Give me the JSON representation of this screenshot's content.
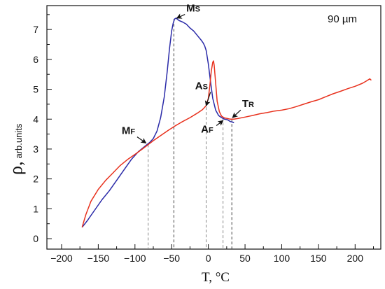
{
  "chart_data": {
    "type": "line",
    "ylabel": "ρ",
    "ylabel_sub": "arb.units",
    "xlabel": "T, °C",
    "annotation": "90 µm",
    "xlim": [
      -220,
      235
    ],
    "ylim": [
      -0.35,
      7.8
    ],
    "x_ticks": [
      -200,
      -150,
      -100,
      -50,
      0,
      50,
      100,
      150,
      200
    ],
    "x_tick_labels": [
      "−200",
      "−150",
      "−100",
      "−50",
      "0",
      "50",
      "100",
      "150",
      "200"
    ],
    "y_ticks": [
      0,
      1,
      2,
      3,
      4,
      5,
      6,
      7
    ],
    "y_tick_labels": [
      "0",
      "1",
      "2",
      "3",
      "4",
      "5",
      "6",
      "7"
    ],
    "colors": {
      "cooling": "#2a2aa8",
      "heating": "#e8321e",
      "guide": "#888888",
      "guide_dark": "#444444"
    },
    "series": [
      {
        "color_key": "cooling",
        "x": [
          -172,
          -165,
          -155,
          -145,
          -135,
          -125,
          -115,
          -105,
          -95,
          -85,
          -80,
          -75,
          -70,
          -65,
          -60,
          -56,
          -53,
          -50,
          -48,
          -46,
          -44,
          -40,
          -35,
          -30,
          -25,
          -20,
          -15,
          -10,
          -7,
          -5,
          -3,
          0,
          3,
          6,
          10,
          14,
          18,
          22,
          26,
          30,
          33,
          35
        ],
        "y": [
          0.38,
          0.6,
          0.95,
          1.3,
          1.6,
          1.95,
          2.3,
          2.65,
          2.92,
          3.12,
          3.22,
          3.35,
          3.6,
          4.05,
          4.75,
          5.6,
          6.35,
          6.95,
          7.2,
          7.35,
          7.38,
          7.3,
          7.25,
          7.18,
          7.05,
          6.95,
          6.8,
          6.65,
          6.55,
          6.45,
          6.3,
          5.85,
          5.25,
          4.7,
          4.3,
          4.12,
          4.05,
          4.0,
          3.98,
          3.92,
          3.9,
          3.88
        ]
      },
      {
        "color_key": "heating",
        "x": [
          -172,
          -167,
          -160,
          -150,
          -140,
          -130,
          -120,
          -110,
          -100,
          -90,
          -82,
          -75,
          -65,
          -55,
          -45,
          -35,
          -25,
          -15,
          -8,
          -3,
          0,
          2,
          4,
          6,
          7,
          8,
          10,
          12,
          15,
          18,
          22,
          26,
          30,
          35,
          40,
          50,
          60,
          70,
          80,
          90,
          100,
          110,
          120,
          130,
          140,
          150,
          160,
          170,
          180,
          190,
          200,
          210,
          215,
          220,
          222
        ],
        "y": [
          0.38,
          0.8,
          1.25,
          1.65,
          1.95,
          2.2,
          2.45,
          2.65,
          2.82,
          3.0,
          3.15,
          3.28,
          3.45,
          3.62,
          3.78,
          3.92,
          4.05,
          4.2,
          4.32,
          4.45,
          4.7,
          5.1,
          5.6,
          5.9,
          5.95,
          5.8,
          5.2,
          4.6,
          4.25,
          4.1,
          4.04,
          4.02,
          4.0,
          4.0,
          4.02,
          4.07,
          4.12,
          4.18,
          4.22,
          4.27,
          4.3,
          4.35,
          4.42,
          4.5,
          4.58,
          4.65,
          4.75,
          4.85,
          4.93,
          5.02,
          5.1,
          5.2,
          5.27,
          5.35,
          5.3
        ]
      }
    ],
    "guides": [
      {
        "x": -82,
        "y": 3.15,
        "style": "guide"
      },
      {
        "x": -47,
        "y": 7.35,
        "style": "guide_dark"
      },
      {
        "x": -3,
        "y": 4.4,
        "style": "guide"
      },
      {
        "x": 20,
        "y": 4.05,
        "style": "guide"
      },
      {
        "x": 32,
        "y": 4.0,
        "style": "guide_dark"
      }
    ],
    "labels": [
      {
        "main": "M",
        "sub": "S",
        "tx": -30,
        "ty": 7.6,
        "ax": -43,
        "ay": 7.38
      },
      {
        "main": "A",
        "sub": "S",
        "tx": -18,
        "ty": 5.0,
        "ax": -3,
        "ay": 4.45
      },
      {
        "main": "M",
        "sub": "F",
        "tx": -118,
        "ty": 3.5,
        "ax": -85,
        "ay": 3.2
      },
      {
        "main": "T",
        "sub": "R",
        "tx": 46,
        "ty": 4.4,
        "ax": 33,
        "ay": 4.05
      },
      {
        "main": "A",
        "sub": "F",
        "tx": -10,
        "ty": 3.55,
        "ax": 20,
        "ay": 3.95
      }
    ]
  }
}
